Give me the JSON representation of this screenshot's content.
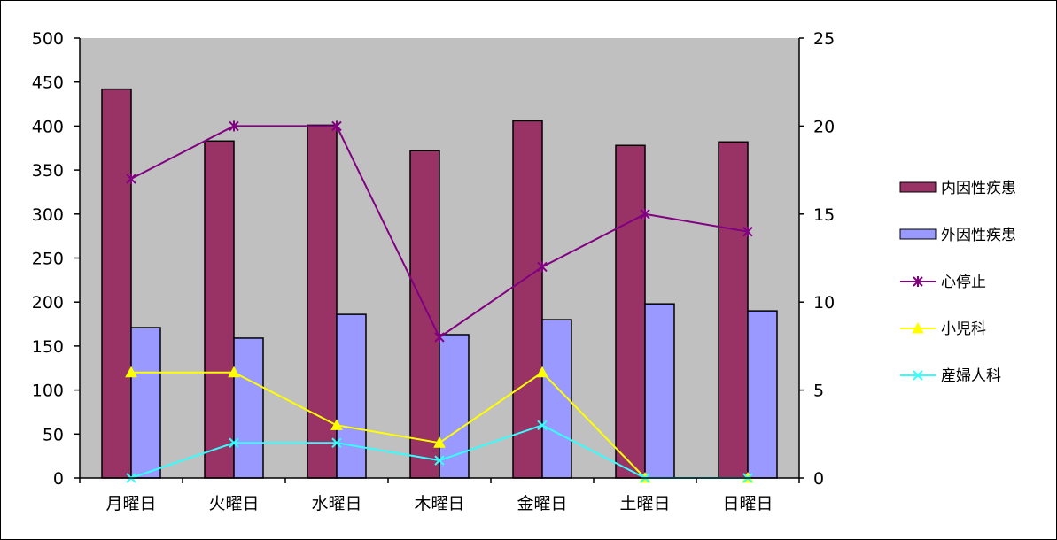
{
  "chart_data": {
    "type": "bar",
    "title": "",
    "xlabel": "",
    "ylabel": "",
    "categories": [
      "月曜日",
      "火曜日",
      "水曜日",
      "木曜日",
      "金曜日",
      "土曜日",
      "日曜日"
    ],
    "ylim": [
      0,
      500
    ],
    "yticks": [
      "0",
      "50",
      "100",
      "150",
      "200",
      "250",
      "300",
      "350",
      "400",
      "450",
      "500"
    ],
    "y2lim": [
      0,
      25
    ],
    "y2ticks": [
      "0",
      "5",
      "10",
      "15",
      "20",
      "25"
    ],
    "grid": false,
    "legend_position": "right",
    "plot_background": "#c0c0c0",
    "series": [
      {
        "name": "内因性疾患",
        "kind": "bar",
        "axis": "left",
        "color": "#993366",
        "values": [
          442,
          383,
          401,
          372,
          406,
          378,
          382
        ]
      },
      {
        "name": "外因性疾患",
        "kind": "bar",
        "axis": "left",
        "color": "#9999ff",
        "values": [
          171,
          159,
          186,
          163,
          180,
          198,
          190
        ]
      },
      {
        "name": "心停止",
        "kind": "line",
        "axis": "right",
        "color": "#800080",
        "marker": "asterisk",
        "values": [
          17,
          20,
          20,
          8,
          12,
          15,
          14
        ]
      },
      {
        "name": "小児科",
        "kind": "line",
        "axis": "right",
        "color": "#ffff00",
        "marker": "triangle",
        "values": [
          6,
          6,
          3,
          2,
          6,
          0,
          0
        ]
      },
      {
        "name": "産婦人科",
        "kind": "line",
        "axis": "right",
        "color": "#33ffff",
        "marker": "x",
        "values": [
          0,
          2,
          2,
          1,
          3,
          0,
          0
        ]
      }
    ]
  }
}
